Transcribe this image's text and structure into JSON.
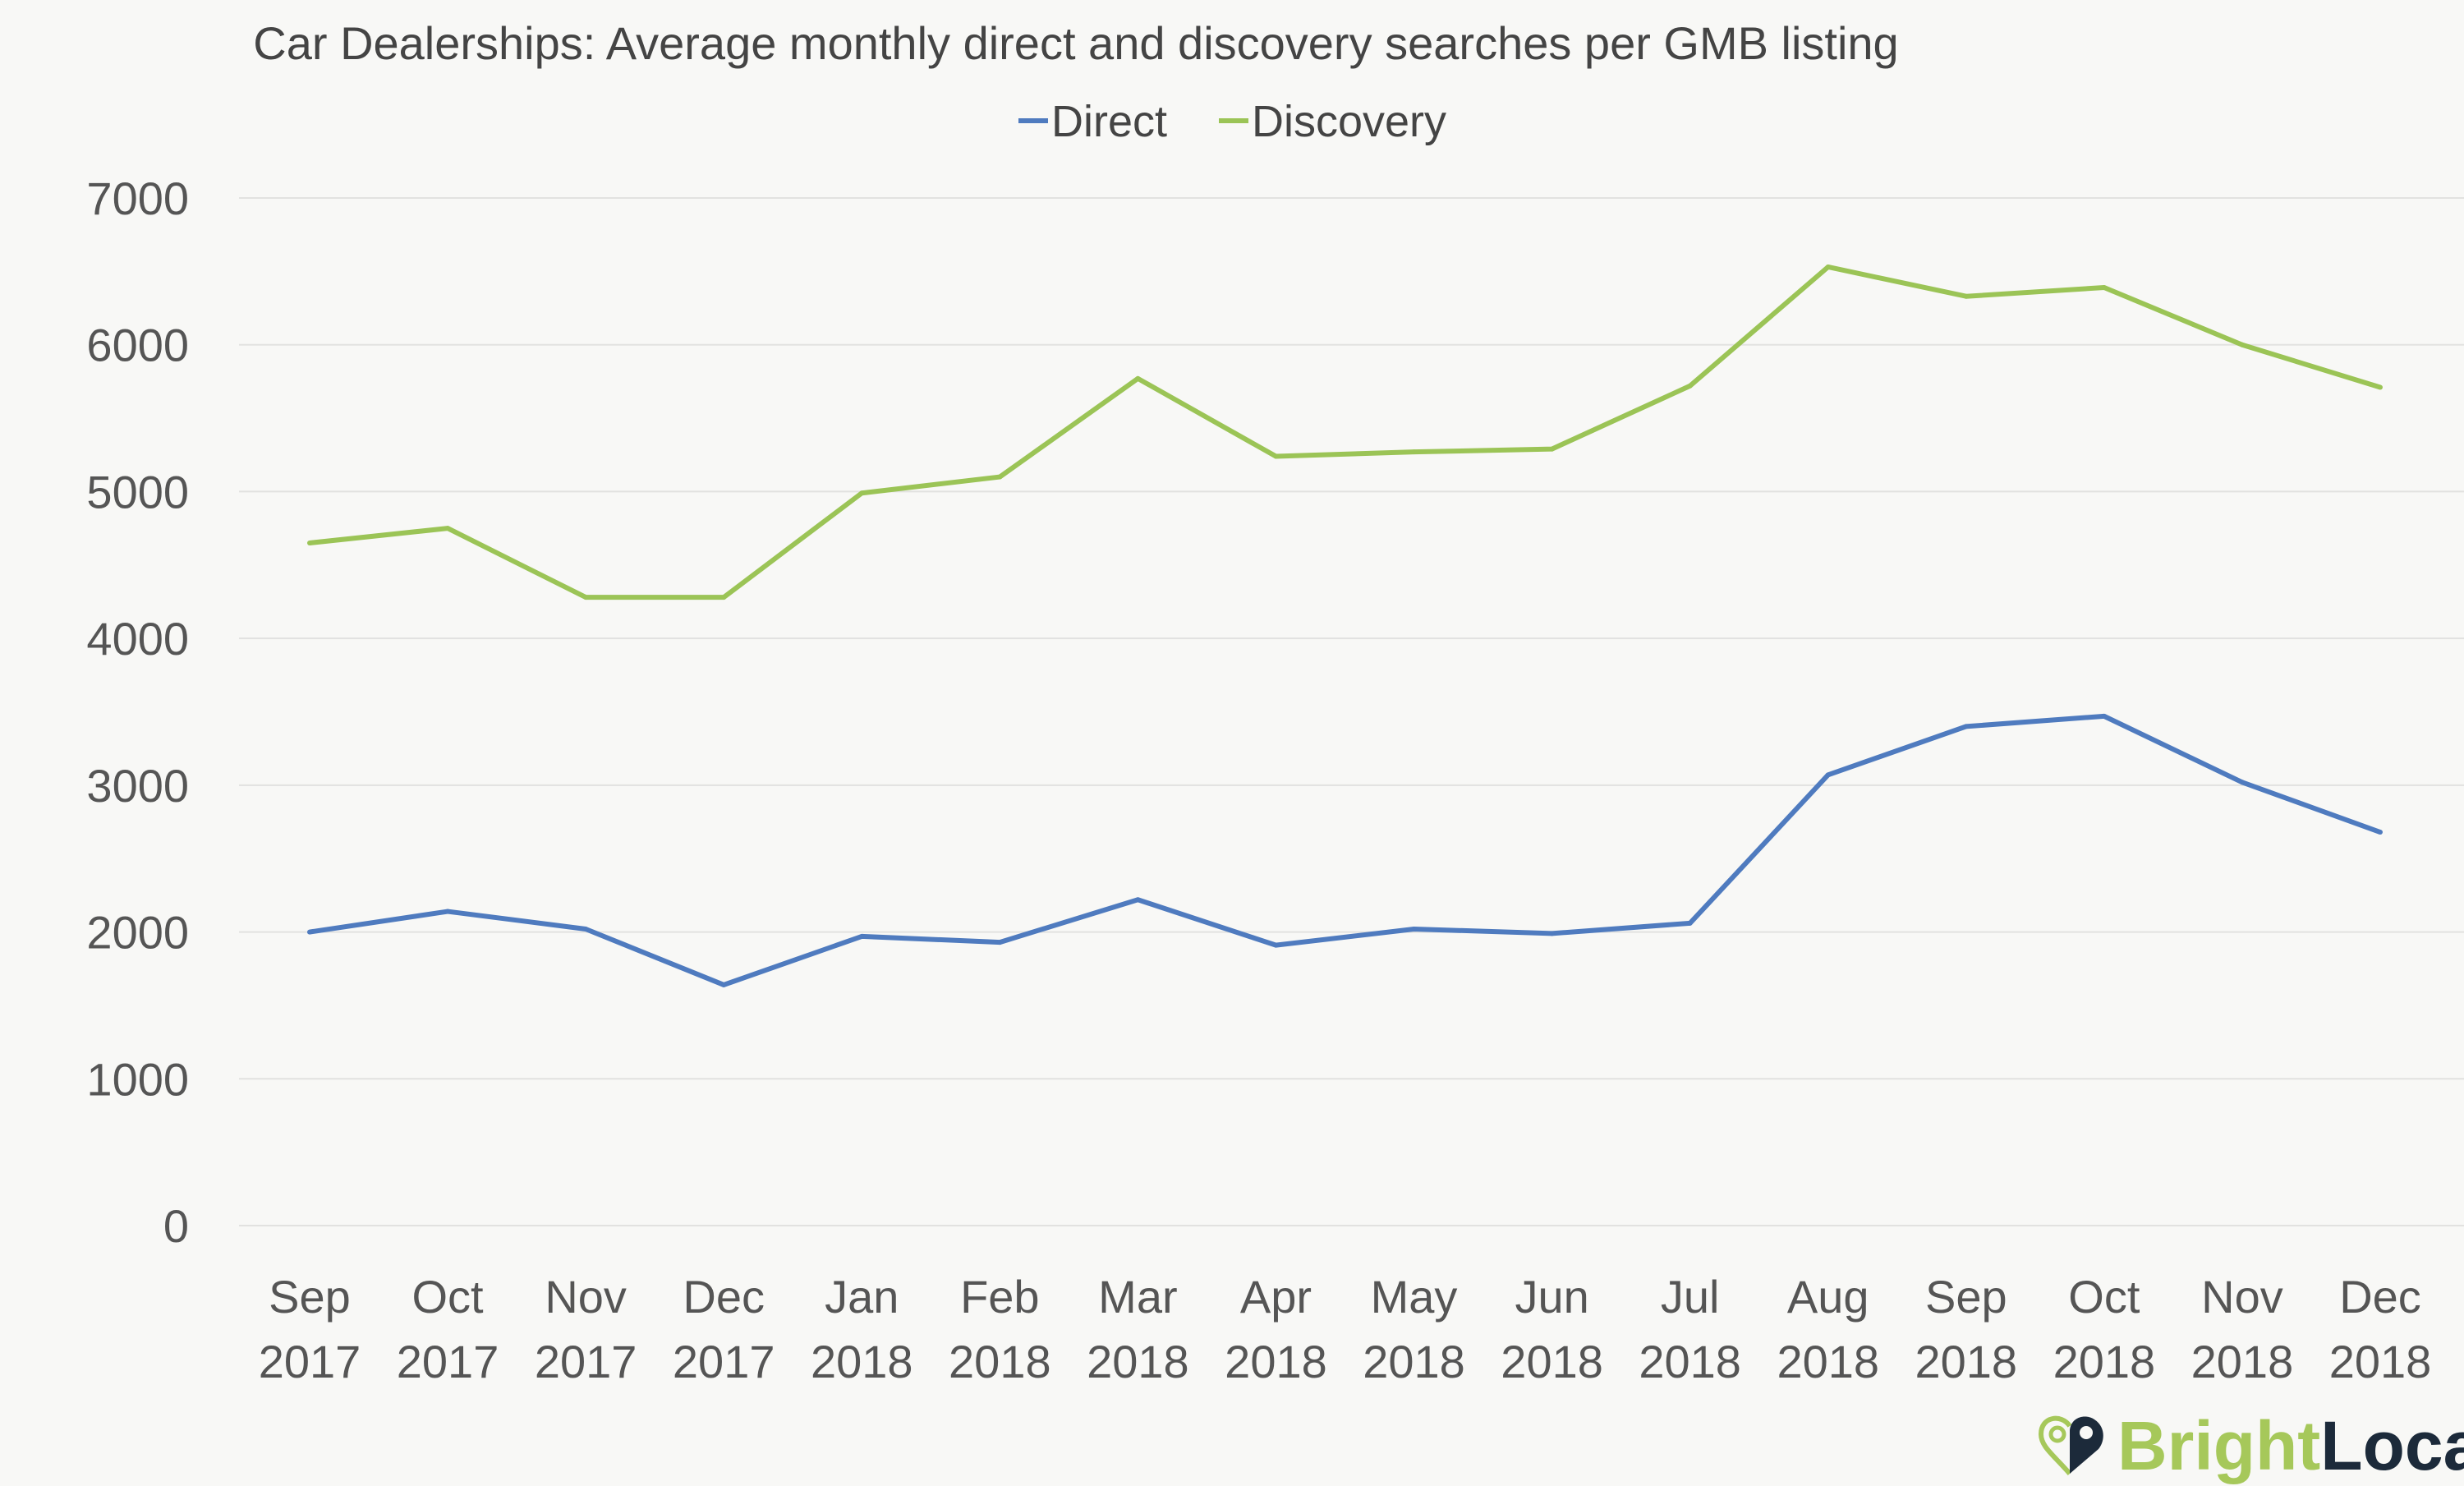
{
  "chart_data": {
    "type": "line",
    "title": "Car Dealerships: Average monthly direct and discovery searches per GMB listing",
    "categories": [
      [
        "Sep",
        "2017"
      ],
      [
        "Oct",
        "2017"
      ],
      [
        "Nov",
        "2017"
      ],
      [
        "Dec",
        "2017"
      ],
      [
        "Jan",
        "2018"
      ],
      [
        "Feb",
        "2018"
      ],
      [
        "Mar",
        "2018"
      ],
      [
        "Apr",
        "2018"
      ],
      [
        "May",
        "2018"
      ],
      [
        "Jun",
        "2018"
      ],
      [
        "Jul",
        "2018"
      ],
      [
        "Aug",
        "2018"
      ],
      [
        "Sep",
        "2018"
      ],
      [
        "Oct",
        "2018"
      ],
      [
        "Nov",
        "2018"
      ],
      [
        "Dec",
        "2018"
      ]
    ],
    "series": [
      {
        "name": "Direct",
        "color": "#4f7bbf",
        "values": [
          2000,
          2140,
          2020,
          1640,
          1970,
          1930,
          2220,
          1910,
          2020,
          1990,
          2060,
          3070,
          3400,
          3470,
          3020,
          2680
        ]
      },
      {
        "name": "Discovery",
        "color": "#9bc456",
        "values": [
          4650,
          4750,
          4280,
          4280,
          4990,
          5100,
          5770,
          5240,
          5270,
          5290,
          5720,
          6530,
          6330,
          6390,
          6000,
          5710
        ]
      }
    ],
    "ylim": [
      0,
      7000
    ],
    "yticks": [
      0,
      1000,
      2000,
      3000,
      4000,
      5000,
      6000,
      7000
    ],
    "grid": true,
    "legend": "top"
  },
  "branding": {
    "logo_text_1": "Bright",
    "logo_text_2": "Local"
  }
}
